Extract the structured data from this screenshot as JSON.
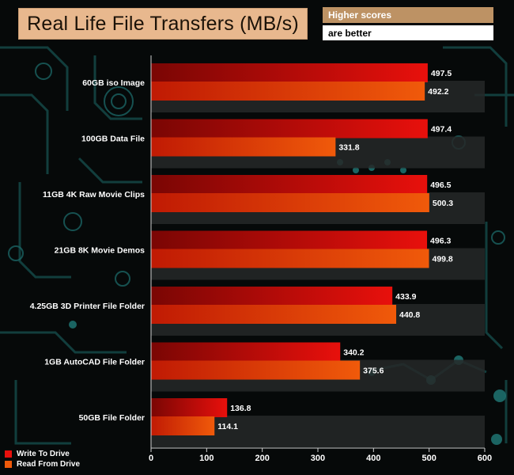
{
  "header": {
    "title": "Real Life File Transfers (MB/s)",
    "note_line1": "Higher scores",
    "note_line2": "are better"
  },
  "colors": {
    "write": "#e8100c",
    "read": "#f05a0a",
    "background": "#060909",
    "circuit": "#1e6e6c"
  },
  "chart_data": {
    "type": "bar",
    "orientation": "horizontal",
    "categories": [
      "60GB iso Image",
      "100GB Data File",
      "11GB 4K Raw Movie Clips",
      "21GB 8K Movie Demos",
      "4.25GB 3D Printer File Folder",
      "1GB AutoCAD File Folder",
      "50GB File Folder"
    ],
    "series": [
      {
        "name": "Write To  Drive",
        "values": [
          497.5,
          497.4,
          496.5,
          496.3,
          433.9,
          340.2,
          136.8
        ]
      },
      {
        "name": "Read From  Drive",
        "values": [
          492.2,
          331.8,
          500.3,
          499.8,
          440.8,
          375.6,
          114.1
        ]
      }
    ],
    "data_labels": [
      [
        "497.5",
        "497.4",
        "496.5",
        "496.3",
        "433.9",
        "340.2",
        "136.8"
      ],
      [
        "492.2",
        "331.8",
        "500.3",
        "499.8",
        "440.8",
        "375.6",
        "114.1"
      ]
    ],
    "xlim": [
      0,
      600
    ],
    "xticks": [
      "0",
      "100",
      "200",
      "300",
      "400",
      "500",
      "600"
    ],
    "grid": false,
    "legend": "bottom-left",
    "title": "Real Life File Transfers (MB/s)",
    "xlabel": "",
    "ylabel": ""
  }
}
